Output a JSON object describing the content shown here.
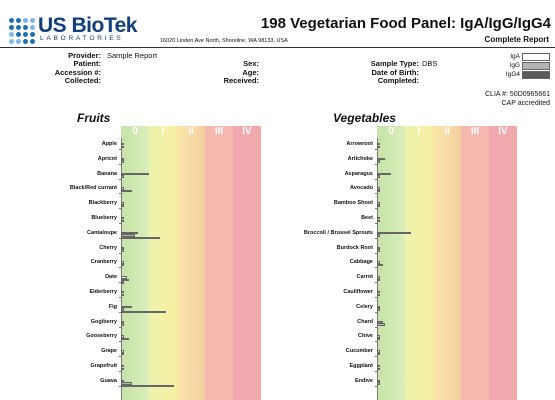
{
  "header": {
    "logo_name": "US BioTek",
    "logo_sub": "LABORATORIES",
    "address": "16020 Linden Ave North, Shoreline, WA 98133, USA",
    "title": "198 Vegetarian Food Panel: IgA/IgG/IgG4",
    "subtitle": "Complete Report",
    "brand_color": "#123e7c"
  },
  "patient": {
    "provider_label": "Provider:",
    "provider": "Sample Report",
    "patient_label": "Patient:",
    "accession_label": "Accession #:",
    "collected_label": "Collected:",
    "sex_label": "Sex:",
    "age_label": "Age:",
    "received_label": "Received:",
    "sample_type_label": "Sample Type:",
    "sample_type": "DBS",
    "dob_label": "Date of Birth:",
    "completed_label": "Completed:"
  },
  "legend": {
    "iga": "IgA",
    "igg": "IgG",
    "igg4": "IgG4",
    "colors": {
      "iga": "#ffffff",
      "igg": "#b3b3b3",
      "igg4": "#5a5a5a"
    }
  },
  "lab": {
    "clia": "CLIA #: 50D0965661",
    "cap": "CAP accredited"
  },
  "class_labels": [
    "0",
    "I",
    "II",
    "III",
    "IV"
  ],
  "class_colors": [
    "#cfe6b4",
    "#f3f1a6",
    "#f7ddaa",
    "#f5b9b0",
    "#f2a9ae"
  ],
  "chart_data": [
    {
      "type": "bar",
      "title": "Fruits",
      "categories": [
        "Apple",
        "Apricot",
        "Banana",
        "Black/Red currant",
        "Blackberry",
        "Blueberry",
        "Cantaloupe",
        "Cherry",
        "Cranberry",
        "Date",
        "Elderberry",
        "Fig",
        "Gogiberry",
        "Gooseberry",
        "Grape",
        "Grapefruit",
        "Guava"
      ],
      "series": [
        {
          "name": "IgA",
          "values": [
            0.1,
            0.1,
            1.0,
            0.1,
            0.1,
            0.1,
            0.6,
            0.1,
            0.1,
            0.2,
            0.1,
            0.4,
            0.1,
            0.1,
            0.1,
            0.1,
            0.1
          ]
        },
        {
          "name": "IgG",
          "values": [
            0.1,
            0.1,
            0.1,
            0.4,
            0.1,
            0.1,
            0.5,
            0.1,
            0.1,
            0.3,
            0.1,
            0.1,
            0.1,
            0.3,
            0.1,
            0.1,
            0.4
          ]
        },
        {
          "name": "IgG4",
          "values": [
            0,
            0,
            0,
            0,
            0,
            0,
            1.4,
            0,
            0,
            0.1,
            0,
            1.6,
            0,
            0,
            0,
            0,
            1.9
          ]
        }
      ],
      "xlim": [
        0,
        3.5
      ]
    },
    {
      "type": "bar",
      "title": "Vegetables",
      "categories": [
        "Arrowroot",
        "Artichoke",
        "Asparagus",
        "Avocado",
        "Bamboo Shoot",
        "Beet",
        "Broccoli / Brussel Sprouts",
        "Burdock Root",
        "Cabbage",
        "Carrot",
        "Cauliflower",
        "Celery",
        "Chard",
        "Chive",
        "Cucumber",
        "Eggplant",
        "Endive"
      ],
      "series": [
        {
          "name": "IgA",
          "values": [
            0.1,
            0.3,
            0.5,
            0.1,
            0.1,
            0.1,
            1.2,
            0.1,
            0.1,
            0.1,
            0.1,
            0.1,
            0.2,
            0.1,
            0.1,
            0.1,
            0.1
          ]
        },
        {
          "name": "IgG",
          "values": [
            0.1,
            0.1,
            0.1,
            0.1,
            0.1,
            0.1,
            0.1,
            0.1,
            0.2,
            0.1,
            0.1,
            0.1,
            0.3,
            0.1,
            0.1,
            0.1,
            0.1
          ]
        },
        {
          "name": "IgG4",
          "values": [
            0,
            0,
            0,
            0,
            0,
            0,
            0,
            0,
            0,
            0,
            0,
            0,
            0,
            0,
            0,
            0,
            0
          ]
        }
      ],
      "xlim": [
        0,
        3.5
      ]
    }
  ]
}
